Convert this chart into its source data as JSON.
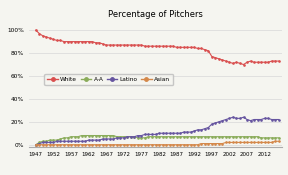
{
  "title": "Percentage of Pitchers",
  "years": [
    1947,
    1948,
    1949,
    1950,
    1951,
    1952,
    1953,
    1954,
    1955,
    1956,
    1957,
    1958,
    1959,
    1960,
    1961,
    1962,
    1963,
    1964,
    1965,
    1966,
    1967,
    1968,
    1969,
    1970,
    1971,
    1972,
    1973,
    1974,
    1975,
    1976,
    1977,
    1978,
    1979,
    1980,
    1981,
    1982,
    1983,
    1984,
    1985,
    1986,
    1987,
    1988,
    1989,
    1990,
    1991,
    1992,
    1993,
    1994,
    1995,
    1996,
    1997,
    1998,
    1999,
    2000,
    2001,
    2002,
    2003,
    2004,
    2005,
    2006,
    2007,
    2008,
    2009,
    2010,
    2011,
    2012,
    2013,
    2014,
    2015,
    2016
  ],
  "white": [
    100,
    97,
    95,
    94,
    93,
    92,
    91,
    91,
    90,
    90,
    90,
    90,
    90,
    90,
    90,
    90,
    90,
    89,
    89,
    88,
    87,
    87,
    87,
    87,
    87,
    87,
    87,
    87,
    87,
    87,
    87,
    86,
    86,
    86,
    86,
    86,
    86,
    86,
    86,
    86,
    85,
    85,
    85,
    85,
    85,
    85,
    84,
    84,
    83,
    82,
    77,
    76,
    75,
    74,
    73,
    72,
    71,
    72,
    71,
    70,
    72,
    73,
    72,
    72,
    72,
    72,
    72,
    73,
    73,
    73
  ],
  "aa": [
    0,
    2,
    3,
    3,
    4,
    4,
    4,
    5,
    6,
    6,
    7,
    7,
    7,
    8,
    8,
    8,
    8,
    8,
    8,
    8,
    8,
    8,
    8,
    7,
    7,
    7,
    7,
    7,
    7,
    6,
    6,
    6,
    7,
    7,
    7,
    7,
    7,
    7,
    7,
    7,
    7,
    7,
    7,
    7,
    7,
    7,
    7,
    7,
    7,
    7,
    7,
    7,
    7,
    7,
    7,
    7,
    7,
    7,
    7,
    7,
    7,
    7,
    7,
    7,
    6,
    6,
    6,
    6,
    6,
    6
  ],
  "latino": [
    0,
    1,
    2,
    2,
    2,
    2,
    3,
    3,
    3,
    3,
    3,
    3,
    3,
    3,
    3,
    4,
    4,
    4,
    4,
    5,
    5,
    5,
    5,
    6,
    6,
    6,
    7,
    7,
    7,
    8,
    8,
    9,
    9,
    9,
    9,
    10,
    10,
    10,
    10,
    10,
    10,
    10,
    11,
    11,
    11,
    12,
    13,
    13,
    14,
    15,
    18,
    19,
    20,
    21,
    22,
    23,
    24,
    23,
    23,
    24,
    22,
    21,
    22,
    22,
    22,
    23,
    23,
    22,
    22,
    22
  ],
  "asian": [
    0,
    0,
    0,
    0,
    0,
    0,
    0,
    0,
    0,
    0,
    0,
    0,
    0,
    0,
    0,
    0,
    0,
    0,
    0,
    0,
    0,
    0,
    0,
    0,
    0,
    0,
    0,
    0,
    0,
    0,
    0,
    0,
    0,
    0,
    0,
    0,
    0,
    0,
    0,
    0,
    0,
    0,
    0,
    0,
    0,
    0,
    0,
    1,
    1,
    1,
    1,
    1,
    1,
    1,
    2,
    2,
    2,
    2,
    2,
    2,
    2,
    2,
    2,
    2,
    2,
    2,
    2,
    2,
    3,
    3
  ],
  "white_color": "#d94f4f",
  "aa_color": "#8aac5a",
  "latino_color": "#6655a0",
  "asian_color": "#d4884a",
  "background_color": "#f5f5f0",
  "grid_color": "#d8d8d8",
  "xticks": [
    1947,
    1952,
    1957,
    1962,
    1967,
    1972,
    1977,
    1982,
    1987,
    1992,
    1997,
    2002,
    2007,
    2012
  ],
  "yticks": [
    0,
    20,
    40,
    60,
    80,
    100
  ],
  "ylim": [
    -2,
    108
  ],
  "xlim": [
    1945,
    2017
  ],
  "legend_labels": [
    "White",
    "A-A",
    "Latino",
    "Asian"
  ]
}
